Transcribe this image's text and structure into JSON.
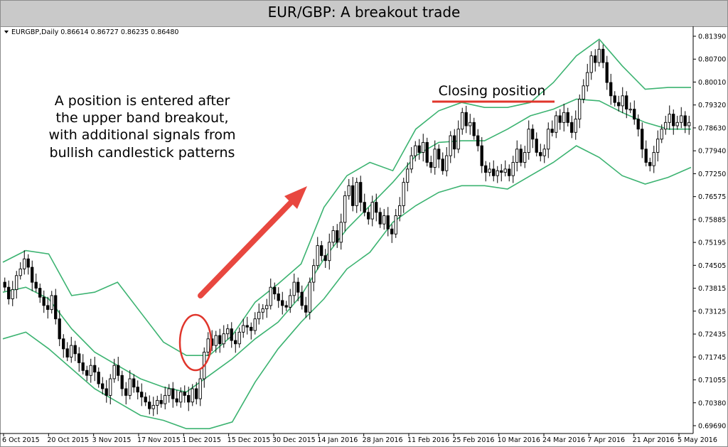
{
  "title": "EUR/GBP: A breakout trade",
  "symbol_header": "EURGBP,Daily  0.86614 0.86727 0.86235 0.86480",
  "annotations": {
    "entry_note": [
      "A position is entered after",
      "the upper band breakout,",
      "with additional signals from",
      "bullish candlestick patterns"
    ],
    "closing_note": "Closing position"
  },
  "colors": {
    "bands": "#3cb371",
    "annotation_red": "#e0352b",
    "arrow_red": "#e8473f",
    "candle": "#000000"
  },
  "chart_data": {
    "type": "candlestick",
    "instrument": "EURGBP",
    "timeframe": "Daily",
    "y_ticks": [
      "0.81390",
      "0.80700",
      "0.80010",
      "0.79320",
      "0.78630",
      "0.77940",
      "0.77250",
      "0.76575",
      "0.75885",
      "0.75195",
      "0.74505",
      "0.73815",
      "0.73125",
      "0.72435",
      "0.71745",
      "0.71055",
      "0.70380",
      "0.69690"
    ],
    "ylim": [
      0.6955,
      0.8164
    ],
    "x_labels": [
      "6 Oct 2015",
      "20 Oct 2015",
      "3 Nov 2015",
      "17 Nov 2015",
      "1 Dec 2015",
      "15 Dec 2015",
      "30 Dec 2015",
      "14 Jan 2016",
      "28 Jan 2016",
      "11 Feb 2016",
      "25 Feb 2016",
      "10 Mar 2016",
      "24 Mar 2016",
      "7 Apr 2016",
      "21 Apr 2016",
      "5 May 2016"
    ],
    "close_series": [
      0.7385,
      0.735,
      0.7378,
      0.742,
      0.744,
      0.747,
      0.7445,
      0.74,
      0.7382,
      0.7355,
      0.733,
      0.7318,
      0.736,
      0.729,
      0.723,
      0.72,
      0.7175,
      0.721,
      0.7185,
      0.7158,
      0.7135,
      0.712,
      0.715,
      0.713,
      0.7095,
      0.708,
      0.706,
      0.711,
      0.715,
      0.712,
      0.708,
      0.706,
      0.711,
      0.7085,
      0.707,
      0.7055,
      0.704,
      0.702,
      0.703,
      0.7045,
      0.7035,
      0.706,
      0.708,
      0.705,
      0.704,
      0.707,
      0.706,
      0.704,
      0.708,
      0.705,
      0.711,
      0.719,
      0.723,
      0.721,
      0.724,
      0.7215,
      0.7245,
      0.726,
      0.7225,
      0.7215,
      0.725,
      0.727,
      0.7265,
      0.7255,
      0.729,
      0.731,
      0.732,
      0.733,
      0.7385,
      0.7365,
      0.7345,
      0.733,
      0.7325,
      0.736,
      0.74,
      0.737,
      0.733,
      0.731,
      0.74,
      0.745,
      0.751,
      0.748,
      0.7465,
      0.752,
      0.7555,
      0.752,
      0.758,
      0.766,
      0.769,
      0.763,
      0.77,
      0.764,
      0.761,
      0.759,
      0.764,
      0.761,
      0.7575,
      0.76,
      0.756,
      0.7545,
      0.76,
      0.763,
      0.77,
      0.774,
      0.778,
      0.781,
      0.779,
      0.782,
      0.776,
      0.7745,
      0.78,
      0.777,
      0.7735,
      0.778,
      0.784,
      0.78,
      0.786,
      0.791,
      0.787,
      0.788,
      0.784,
      0.781,
      0.775,
      0.773,
      0.774,
      0.772,
      0.7735,
      0.773,
      0.774,
      0.772,
      0.776,
      0.78,
      0.776,
      0.779,
      0.786,
      0.783,
      0.779,
      0.778,
      0.78,
      0.786,
      0.785,
      0.79,
      0.788,
      0.791,
      0.788,
      0.785,
      0.789,
      0.795,
      0.799,
      0.803,
      0.808,
      0.806,
      0.81,
      0.806,
      0.8,
      0.796,
      0.794,
      0.793,
      0.796,
      0.792,
      0.792,
      0.789,
      0.786,
      0.78,
      0.776,
      0.775,
      0.779,
      0.783,
      0.786,
      0.788,
      0.7905,
      0.787,
      0.788,
      0.79,
      0.787,
      0.788
    ],
    "bands": {
      "upper": [
        0.746,
        0.7495,
        0.7485,
        0.736,
        0.737,
        0.74,
        0.731,
        0.722,
        0.718,
        0.718,
        0.724,
        0.734,
        0.7395,
        0.7455,
        0.7625,
        0.772,
        0.776,
        0.7735,
        0.786,
        0.7915,
        0.794,
        0.7925,
        0.7925,
        0.794,
        0.8,
        0.808,
        0.813,
        0.805,
        0.798,
        0.7985,
        0.7985
      ],
      "middle": [
        0.737,
        0.7385,
        0.735,
        0.726,
        0.719,
        0.715,
        0.711,
        0.7085,
        0.707,
        0.712,
        0.717,
        0.723,
        0.728,
        0.736,
        0.747,
        0.756,
        0.763,
        0.77,
        0.778,
        0.782,
        0.7825,
        0.7825,
        0.786,
        0.79,
        0.792,
        0.795,
        0.7945,
        0.791,
        0.788,
        0.786,
        0.786
      ],
      "lower": [
        0.723,
        0.725,
        0.72,
        0.714,
        0.708,
        0.704,
        0.7,
        0.6985,
        0.696,
        0.696,
        0.698,
        0.71,
        0.72,
        0.728,
        0.735,
        0.744,
        0.749,
        0.758,
        0.763,
        0.767,
        0.769,
        0.769,
        0.768,
        0.772,
        0.776,
        0.781,
        0.7775,
        0.772,
        0.7695,
        0.7715,
        0.7745
      ]
    }
  }
}
